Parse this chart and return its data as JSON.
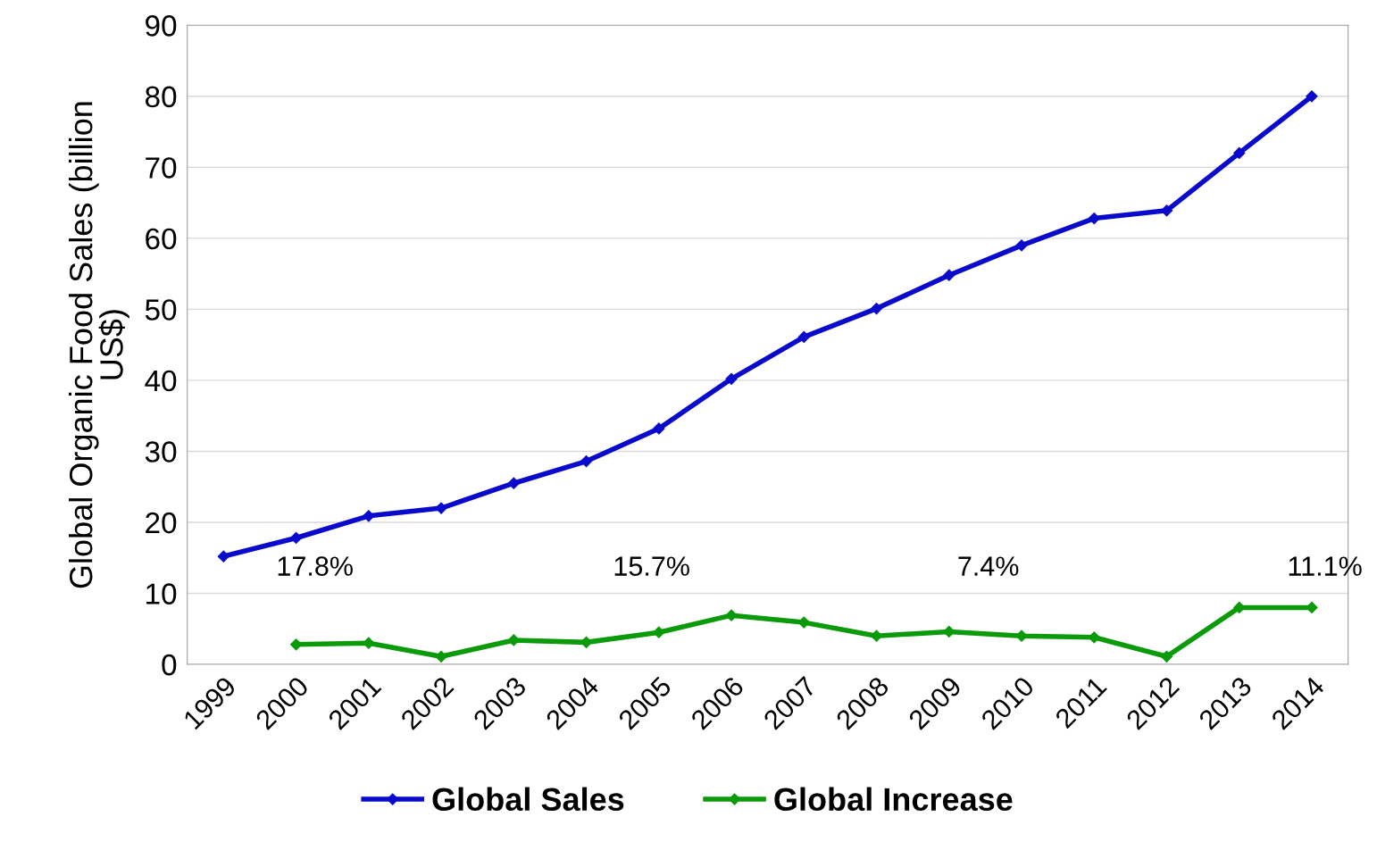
{
  "chart_data": {
    "type": "line",
    "ylabel": "Global Organic Food Sales (billion US$)",
    "categories": [
      "1999",
      "2000",
      "2001",
      "2002",
      "2003",
      "2004",
      "2005",
      "2006",
      "2007",
      "2008",
      "2009",
      "2010",
      "2011",
      "2012",
      "2013",
      "2014"
    ],
    "series": [
      {
        "name": "Global Sales",
        "color": "#0a0acc",
        "values": [
          15.2,
          17.8,
          20.9,
          22.0,
          25.5,
          28.6,
          33.2,
          40.2,
          46.1,
          50.1,
          54.8,
          59.0,
          62.8,
          63.9,
          72.0,
          80.0
        ]
      },
      {
        "name": "Global Increase",
        "color": "#0a9a0a",
        "values": [
          null,
          2.8,
          3.0,
          1.1,
          3.4,
          3.1,
          4.5,
          6.9,
          5.9,
          4.0,
          4.6,
          4.0,
          3.8,
          1.1,
          8.0,
          8.0
        ]
      }
    ],
    "annotations": [
      "17.8%",
      "15.7%",
      "7.4%",
      "11.1%"
    ],
    "ylim": [
      0,
      90
    ],
    "yticks": [
      0,
      10,
      20,
      30,
      40,
      50,
      60,
      70,
      80,
      90
    ],
    "grid": "y",
    "legend": "bottom",
    "marker": "diamond",
    "line_style": "solid"
  }
}
